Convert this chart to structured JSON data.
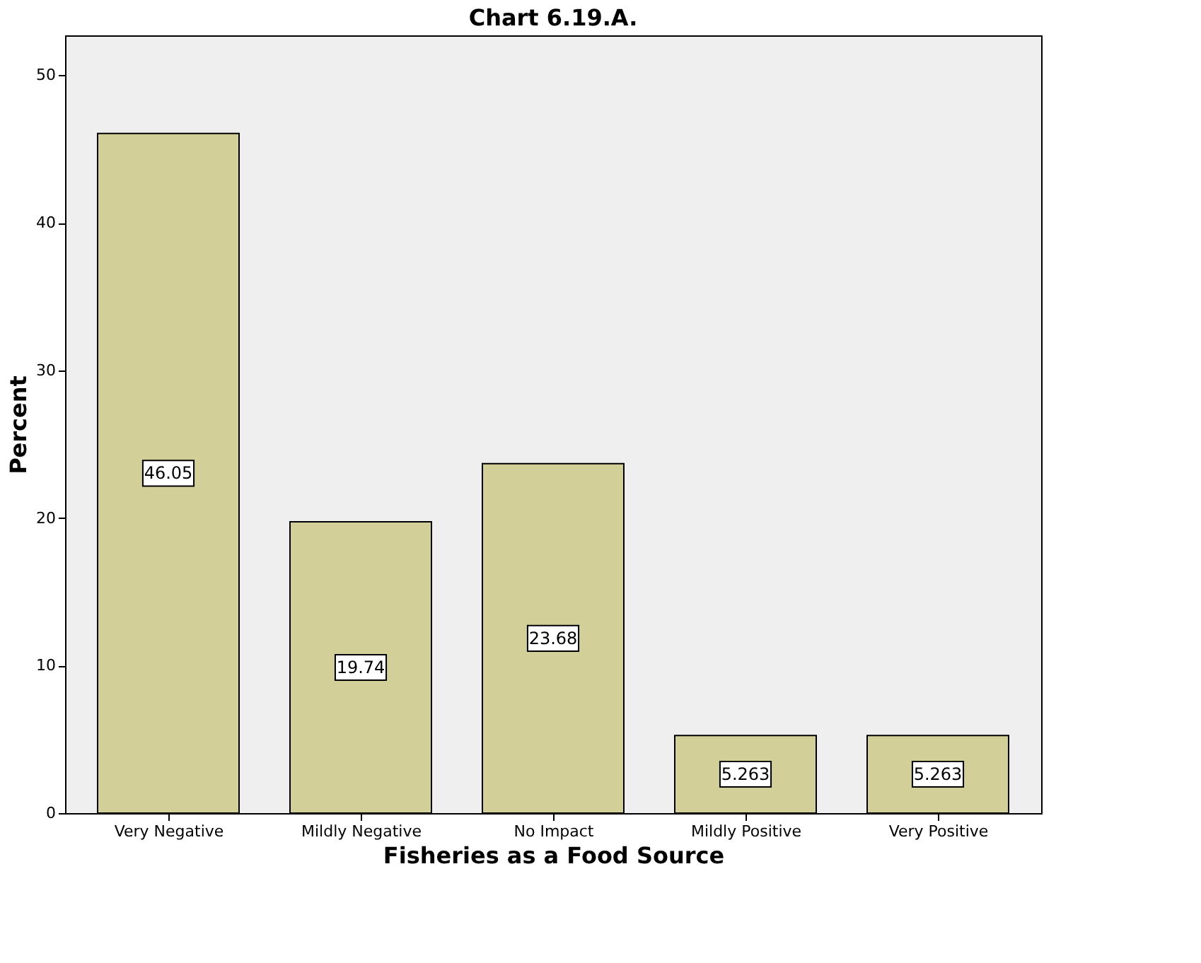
{
  "chart_data": {
    "type": "bar",
    "title": "Chart 6.19.A.",
    "xlabel": "Fisheries as a Food Source",
    "ylabel": "Percent",
    "categories": [
      "Very Negative",
      "Mildly Negative",
      "No Impact",
      "Mildly Positive",
      "Very Positive"
    ],
    "values": [
      46.05,
      19.74,
      23.68,
      5.263,
      5.263
    ],
    "color": "#d3cf98",
    "ylim": [
      0,
      52.7
    ],
    "yticks": [
      0,
      10,
      20,
      30,
      40,
      50
    ],
    "data_labels": true,
    "grid": false
  }
}
